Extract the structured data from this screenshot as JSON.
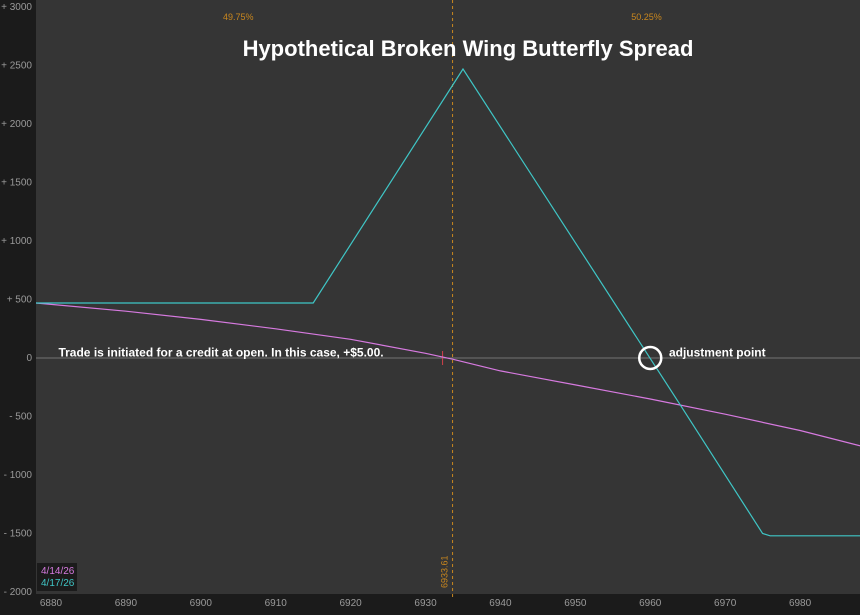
{
  "chart_data": {
    "type": "line",
    "title": "Hypothetical Broken Wing Butterfly Spread",
    "xlim": [
      6878,
      6988
    ],
    "ylim": [
      -2000,
      3000
    ],
    "x_ticks": [
      6880,
      6890,
      6900,
      6910,
      6920,
      6930,
      6940,
      6950,
      6960,
      6970,
      6980
    ],
    "y_ticks": [
      {
        "value": 3000,
        "label": "+ 3000"
      },
      {
        "value": 2500,
        "label": "+ 2500"
      },
      {
        "value": 2000,
        "label": "+ 2000"
      },
      {
        "value": 1500,
        "label": "+ 1500"
      },
      {
        "value": 1000,
        "label": "+ 1000"
      },
      {
        "value": 500,
        "label": "+ 500"
      },
      {
        "value": 0,
        "label": "0"
      },
      {
        "value": -500,
        "label": "- 500"
      },
      {
        "value": -1000,
        "label": "- 1000"
      },
      {
        "value": -1500,
        "label": "- 1500"
      },
      {
        "value": -2000,
        "label": "- 2000"
      }
    ],
    "series": [
      {
        "name": "4/14/26",
        "color": "#d77ae0",
        "x": [
          6878,
          6890,
          6900,
          6910,
          6920,
          6930,
          6933.61,
          6940,
          6950,
          6960,
          6970,
          6980,
          6988
        ],
        "y": [
          470,
          400,
          330,
          250,
          160,
          40,
          -10,
          -110,
          -230,
          -350,
          -480,
          -620,
          -750
        ]
      },
      {
        "name": "4/17/26",
        "color": "#3fc6c6",
        "x": [
          6878,
          6915,
          6935,
          6964,
          6975,
          6976,
          6988
        ],
        "y": [
          470,
          470,
          2470,
          -400,
          -1500,
          -1520,
          -1520
        ]
      }
    ],
    "vertical_marker": {
      "x": 6933.61,
      "label": "6933.61",
      "color": "#c9871e"
    },
    "probabilities": [
      {
        "text": "49.75%",
        "x": 6905
      },
      {
        "text": "50.25%",
        "x": 6959.5
      }
    ],
    "annotations": [
      {
        "text": "Trade is initiated for a credit at open. In this case, +$5.00.",
        "x": 6881,
        "y": 45
      },
      {
        "text": "adjustment point",
        "x": 6962.5,
        "y": 45,
        "circle": {
          "x": 6960,
          "y": 0
        }
      }
    ],
    "legend_placement": "bottom-left",
    "grid": false
  },
  "colors": {
    "background": "#1b1b1b",
    "plot_background": "#353535",
    "zero_line": "#8a8a8a",
    "axis_text": "#9a9a9a"
  }
}
